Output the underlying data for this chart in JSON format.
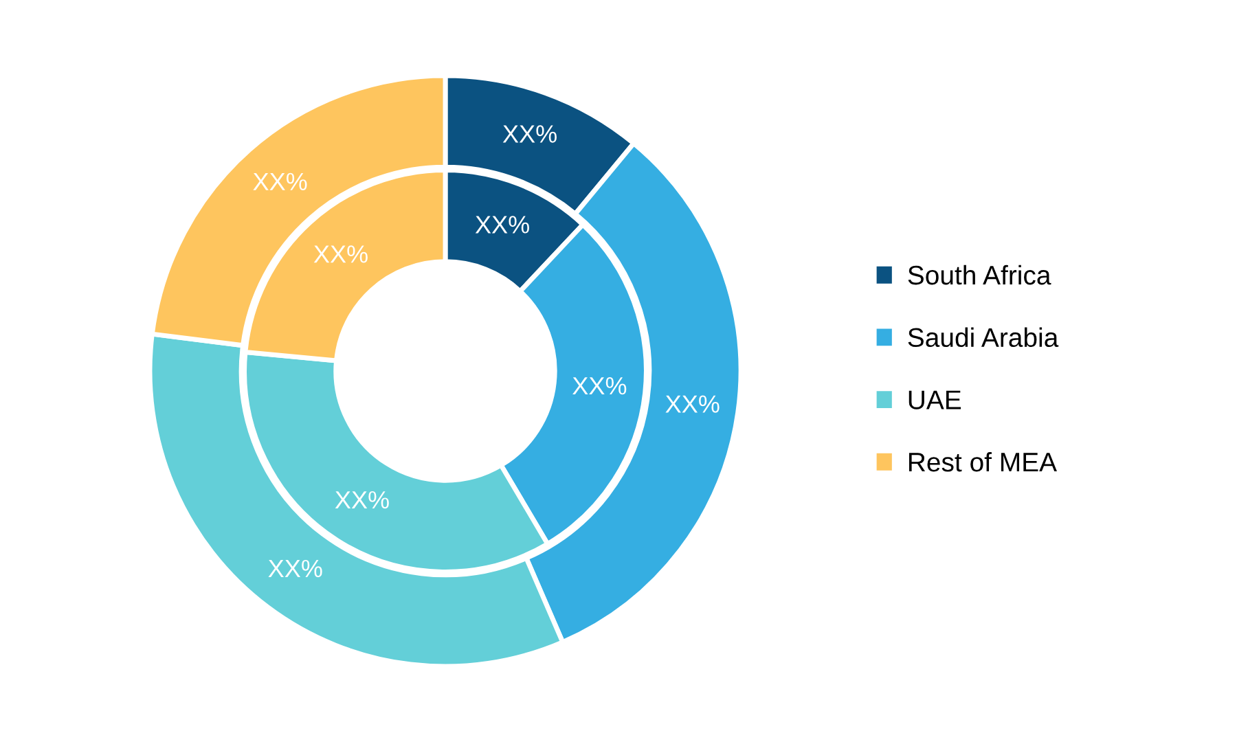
{
  "chart_data": {
    "type": "donut",
    "categories": [
      "South Africa",
      "Saudi Arabia",
      "UAE",
      "Rest of MEA"
    ],
    "colors": [
      "#0b5281",
      "#35aee2",
      "#63cfd8",
      "#fec55e"
    ],
    "series": [
      {
        "values": [
          11,
          32.5,
          33.5,
          23
        ],
        "value_labels": [
          "XX%",
          "XX%",
          "XX%",
          "XX%"
        ]
      },
      {
        "values": [
          12,
          29.5,
          35,
          23.5
        ],
        "value_labels": [
          "XX%",
          "XX%",
          "XX%",
          "XX%"
        ]
      }
    ],
    "legend": "right"
  }
}
